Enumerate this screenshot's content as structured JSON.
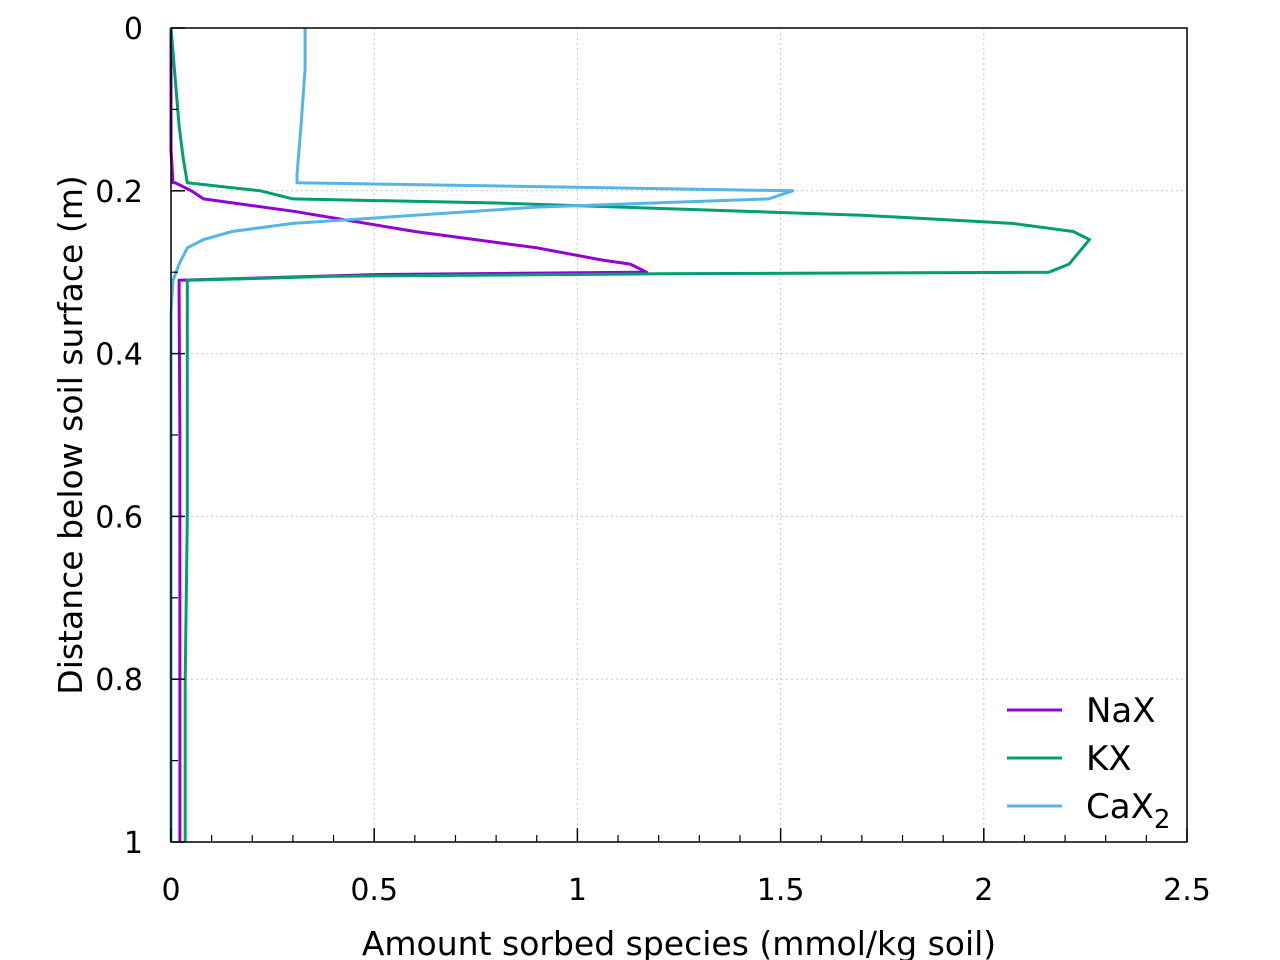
{
  "chart_data": {
    "type": "line",
    "xlabel": "Amount sorbed species (mmol/kg soil)",
    "ylabel": "Distance below soil surface (m)",
    "xlim": [
      0,
      2.5
    ],
    "ylim": [
      0,
      1
    ],
    "y_inverted": true,
    "x_ticks": [
      "0",
      "0.5",
      "1",
      "1.5",
      "2",
      "2.5"
    ],
    "x_tick_values": [
      0,
      0.5,
      1,
      1.5,
      2,
      2.5
    ],
    "y_ticks": [
      "0",
      "0.2",
      "0.4",
      "0.6",
      "0.8",
      "1"
    ],
    "y_tick_values": [
      0,
      0.2,
      0.4,
      0.6,
      0.8,
      1
    ],
    "grid": "dotted",
    "legend_position": "bottom-right",
    "series": [
      {
        "name": "NaX",
        "color": "#9400d3",
        "x": [
          0.0,
          0.0,
          0.005,
          0.01,
          0.05,
          0.08,
          0.3,
          0.6,
          0.9,
          1.06,
          1.13,
          1.17,
          0.5,
          0.02,
          0.02,
          0.022,
          0.022,
          0.022
        ],
        "y": [
          0.0,
          0.15,
          0.19,
          0.19,
          0.2,
          0.21,
          0.225,
          0.25,
          0.27,
          0.285,
          0.29,
          0.3,
          0.303,
          0.31,
          0.33,
          0.5,
          0.8,
          1.0
        ]
      },
      {
        "name": "KX",
        "color": "#009e73",
        "x": [
          0.0,
          0.02,
          0.03,
          0.04,
          0.22,
          0.3,
          0.8,
          1.7,
          2.07,
          2.22,
          2.26,
          2.21,
          2.16,
          1.2,
          0.4,
          0.04,
          0.04,
          0.04,
          0.035,
          0.035
        ],
        "y": [
          0.0,
          0.12,
          0.16,
          0.19,
          0.2,
          0.21,
          0.215,
          0.23,
          0.24,
          0.25,
          0.26,
          0.29,
          0.3,
          0.302,
          0.305,
          0.31,
          0.35,
          0.6,
          0.8,
          1.0
        ]
      },
      {
        "name": "CaX2",
        "color": "#56b4e9",
        "x": [
          0.33,
          0.33,
          0.32,
          0.31,
          0.31,
          1.53,
          1.47,
          0.9,
          0.3,
          0.15,
          0.08,
          0.04,
          0.02,
          0.005,
          0.0,
          0.0
        ],
        "y": [
          0.0,
          0.05,
          0.12,
          0.18,
          0.19,
          0.2,
          0.21,
          0.22,
          0.24,
          0.25,
          0.26,
          0.27,
          0.29,
          0.31,
          0.35,
          1.0
        ]
      }
    ],
    "legend": [
      {
        "label": "NaX",
        "color": "#9400d3"
      },
      {
        "label": "KX",
        "color": "#009e73"
      },
      {
        "label_main": "CaX",
        "label_sub": "2",
        "color": "#56b4e9"
      }
    ]
  }
}
